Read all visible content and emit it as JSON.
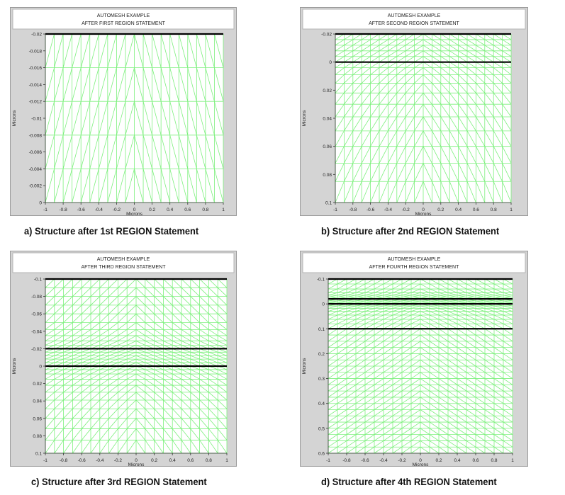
{
  "colors": {
    "mesh": "#7df07d",
    "plot_bg": "#ffffff",
    "frame_bg": "#d4d4d4",
    "boundary": "#000000"
  },
  "chart_data": [
    {
      "type": "mesh",
      "title": "AUTOMESH EXAMPLE",
      "subtitle": "AFTER FIRST REGION STATEMENT",
      "ylabel": "Microns",
      "xlabel": "Microns",
      "caption": "a) Structure after 1st REGION Statement",
      "xlim": [
        -1,
        1
      ],
      "ylim": [
        -0.02,
        0
      ],
      "x_ticks": [
        "-1",
        "-0.8",
        "-0.6",
        "-0.4",
        "-0.2",
        "0",
        "0.2",
        "0.4",
        "0.6",
        "0.8",
        "1"
      ],
      "y_ticks": [
        "-0.02",
        "-0.018",
        "-0.016",
        "-0.014",
        "-0.012",
        "-0.01",
        "-0.008",
        "-0.006",
        "-0.004",
        "-0.002",
        "0"
      ],
      "region_boundaries": [
        -0.02
      ],
      "mesh_lines_y": [
        -0.02,
        -0.016,
        -0.012,
        -0.008,
        -0.004,
        0
      ]
    },
    {
      "type": "mesh",
      "title": "AUTOMESH EXAMPLE",
      "subtitle": "AFTER SECOND REGION STATEMENT",
      "ylabel": "Microns",
      "xlabel": "Microns",
      "caption": "b) Structure after 2nd REGION Statement",
      "xlim": [
        -1,
        1
      ],
      "ylim": [
        -0.02,
        0.1
      ],
      "x_ticks": [
        "-1",
        "-0.8",
        "-0.6",
        "-0.4",
        "-0.2",
        "0",
        "0.2",
        "0.4",
        "0.6",
        "0.8",
        "1"
      ],
      "y_ticks": [
        "-0.02",
        "0",
        "0.02",
        "0.04",
        "0.06",
        "0.08",
        "0.1"
      ],
      "region_boundaries": [
        -0.02,
        0
      ],
      "mesh_lines_y": [
        -0.02,
        -0.016,
        -0.012,
        -0.008,
        -0.004,
        0,
        0.004,
        0.009,
        0.015,
        0.022,
        0.03,
        0.039,
        0.049,
        0.06,
        0.072,
        0.085,
        0.1
      ]
    },
    {
      "type": "mesh",
      "title": "AUTOMESH EXAMPLE",
      "subtitle": "AFTER THIRD REGION STATEMENT",
      "ylabel": "Microns",
      "xlabel": "Microns",
      "caption": "c) Structure after 3rd REGION Statement",
      "xlim": [
        -1,
        1
      ],
      "ylim": [
        -0.1,
        0.1
      ],
      "x_ticks": [
        "-1",
        "-0.8",
        "-0.6",
        "-0.4",
        "-0.2",
        "0",
        "0.2",
        "0.4",
        "0.6",
        "0.8",
        "1"
      ],
      "y_ticks": [
        "-0.1",
        "-0.08",
        "-0.06",
        "-0.04",
        "-0.02",
        "0",
        "0.02",
        "0.04",
        "0.06",
        "0.08",
        "0.1"
      ],
      "region_boundaries": [
        -0.1,
        -0.02,
        0
      ],
      "mesh_lines_y": [
        -0.1,
        -0.09,
        -0.08,
        -0.07,
        -0.06,
        -0.05,
        -0.042,
        -0.035,
        -0.029,
        -0.024,
        -0.02,
        -0.016,
        -0.012,
        -0.008,
        -0.004,
        0,
        0.004,
        0.009,
        0.015,
        0.022,
        0.03,
        0.039,
        0.049,
        0.06,
        0.072,
        0.085,
        0.1
      ]
    },
    {
      "type": "mesh",
      "title": "AUTOMESH EXAMPLE",
      "subtitle": "AFTER FOURTH REGION STATEMENT",
      "ylabel": "Microns",
      "xlabel": "Microns",
      "caption": "d) Structure after 4th REGION Statement",
      "xlim": [
        -1,
        1
      ],
      "ylim": [
        -0.1,
        0.6
      ],
      "x_ticks": [
        "-1",
        "-0.8",
        "-0.6",
        "-0.4",
        "-0.2",
        "0",
        "0.2",
        "0.4",
        "0.6",
        "0.8",
        "1"
      ],
      "y_ticks": [
        "-0.1",
        "0",
        "0.1",
        "0.2",
        "0.3",
        "0.4",
        "0.5",
        "0.6"
      ],
      "region_boundaries": [
        -0.1,
        -0.02,
        0,
        0.1
      ],
      "mesh_lines_y": [
        -0.1,
        -0.08,
        -0.06,
        -0.045,
        -0.035,
        -0.027,
        -0.02,
        -0.012,
        -0.004,
        0,
        0.008,
        0.018,
        0.03,
        0.045,
        0.062,
        0.08,
        0.1,
        0.125,
        0.15,
        0.175,
        0.2,
        0.225,
        0.25,
        0.275,
        0.3,
        0.325,
        0.35,
        0.375,
        0.4,
        0.425,
        0.45,
        0.475,
        0.5,
        0.525,
        0.55,
        0.575,
        0.6
      ]
    }
  ]
}
